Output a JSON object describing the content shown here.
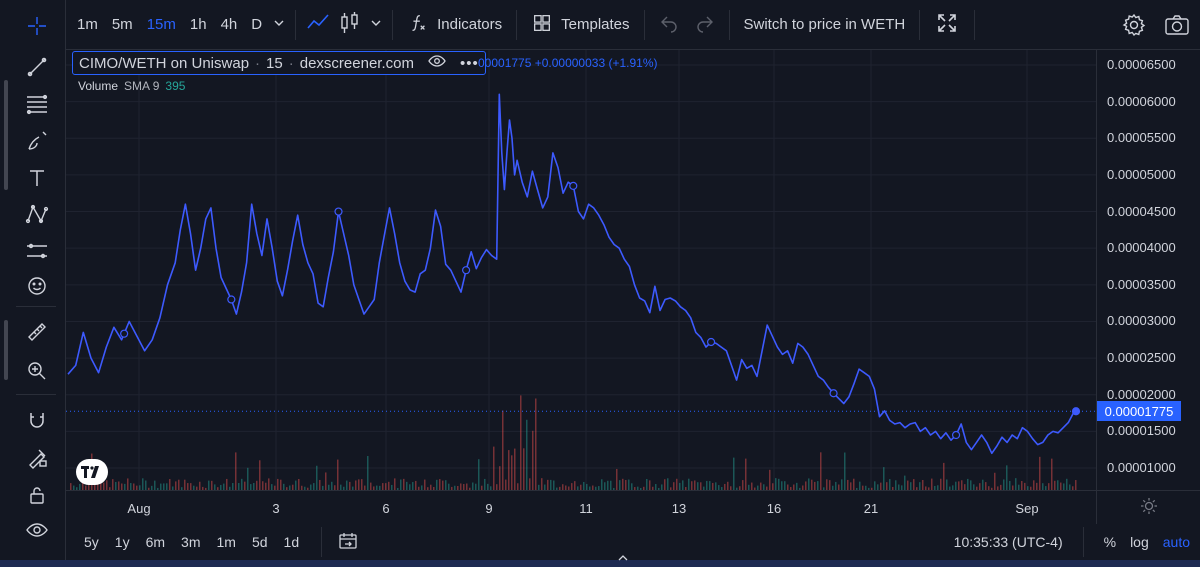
{
  "toolbar": {
    "timeframes": [
      "1m",
      "5m",
      "15m",
      "1h",
      "4h",
      "D"
    ],
    "active_timeframe": "15m",
    "indicators_label": "Indicators",
    "templates_label": "Templates",
    "switch_label": "Switch to price in WETH"
  },
  "legend": {
    "pair": "CIMO/WETH on Uniswap",
    "interval": "15",
    "source": "dexscreener.com",
    "ohlc_text": "00001775 +0.00000033 (+1.91%)",
    "volume_label": "Volume",
    "sma_label": "SMA 9",
    "volume_value": "395"
  },
  "price_axis": {
    "ticks": [
      "0.00006500",
      "0.00006000",
      "0.00005500",
      "0.00005000",
      "0.00004500",
      "0.00004000",
      "0.00003500",
      "0.00003000",
      "0.00002500",
      "0.00002000",
      "0.00001500",
      "0.00001000"
    ],
    "last_price": "0.00001775"
  },
  "time_axis": {
    "ticks": [
      "Aug",
      "3",
      "6",
      "9",
      "11",
      "13",
      "16",
      "21",
      "Sep"
    ]
  },
  "bottom": {
    "ranges": [
      "5y",
      "1y",
      "6m",
      "3m",
      "1m",
      "5d",
      "1d"
    ],
    "clock": "10:35:33 (UTC-4)",
    "percent_label": "%",
    "log_label": "log",
    "auto_label": "auto"
  },
  "colors": {
    "line": "#3d5afe",
    "accent": "#2962ff",
    "bg": "#131722"
  },
  "chart_data": {
    "type": "line",
    "series": [
      {
        "values": [
          [
            0,
            2.28e-05
          ],
          [
            3,
            2.4e-05
          ],
          [
            6,
            2.85e-05
          ],
          [
            9,
            2.5e-05
          ],
          [
            12,
            2.3e-05
          ],
          [
            15,
            2.65e-05
          ],
          [
            18,
            2.92e-05
          ],
          [
            21,
            2.75e-05
          ],
          [
            24,
            3e-05
          ],
          [
            27,
            2.8e-05
          ],
          [
            30,
            2.6e-05
          ],
          [
            33,
            2.75e-05
          ],
          [
            36,
            3.05e-05
          ],
          [
            39,
            3.5e-05
          ],
          [
            42,
            3.8e-05
          ],
          [
            44,
            4.25e-05
          ],
          [
            46,
            4.6e-05
          ],
          [
            48,
            4.2e-05
          ],
          [
            50,
            3.7e-05
          ],
          [
            52,
            4e-05
          ],
          [
            54,
            4.4e-05
          ],
          [
            56,
            4.55e-05
          ],
          [
            58,
            4e-05
          ],
          [
            60,
            3.6e-05
          ],
          [
            62,
            3.45e-05
          ],
          [
            64,
            3.3e-05
          ],
          [
            66,
            3.1e-05
          ],
          [
            68,
            3.4e-05
          ],
          [
            70,
            3.8e-05
          ],
          [
            72,
            4.6e-05
          ],
          [
            74,
            4.2e-05
          ],
          [
            76,
            3.9e-05
          ],
          [
            78,
            4.4e-05
          ],
          [
            80,
            4e-05
          ],
          [
            82,
            3.55e-05
          ],
          [
            84,
            3.35e-05
          ],
          [
            86,
            3.7e-05
          ],
          [
            88,
            4.1e-05
          ],
          [
            90,
            4.45e-05
          ],
          [
            92,
            4.05e-05
          ],
          [
            94,
            3.8e-05
          ],
          [
            96,
            3.65e-05
          ],
          [
            98,
            3.25e-05
          ],
          [
            100,
            3.2e-05
          ],
          [
            102,
            3.6e-05
          ],
          [
            104,
            3.95e-05
          ],
          [
            106,
            4.5e-05
          ],
          [
            108,
            4.2e-05
          ],
          [
            110,
            3.9e-05
          ],
          [
            112,
            3.5e-05
          ],
          [
            114,
            3.3e-05
          ],
          [
            116,
            3.1e-05
          ],
          [
            118,
            3.2e-05
          ],
          [
            120,
            3.3e-05
          ],
          [
            122,
            3.8e-05
          ],
          [
            124,
            4.18e-05
          ],
          [
            126,
            4.55e-05
          ],
          [
            128,
            4.2e-05
          ],
          [
            130,
            3.8e-05
          ],
          [
            132,
            3.55e-05
          ],
          [
            134,
            3.43e-05
          ],
          [
            136,
            3.4e-05
          ],
          [
            138,
            3.65e-05
          ],
          [
            140,
            3.7e-05
          ],
          [
            142,
            4e-05
          ],
          [
            144,
            4.52e-05
          ],
          [
            146,
            4.3e-05
          ],
          [
            148,
            3.78e-05
          ],
          [
            150,
            3.7e-05
          ],
          [
            152,
            3.55e-05
          ],
          [
            154,
            3.4e-05
          ],
          [
            156,
            3.7e-05
          ],
          [
            158,
            3.95e-05
          ],
          [
            160,
            3.72e-05
          ],
          [
            162,
            3.87e-05
          ],
          [
            164,
            3.98e-05
          ],
          [
            166,
            3.9e-05
          ],
          [
            168,
            3.85e-05
          ],
          [
            169,
            6.1e-05
          ],
          [
            170,
            5.3e-05
          ],
          [
            171,
            4.8e-05
          ],
          [
            172,
            5.3e-05
          ],
          [
            173,
            5.75e-05
          ],
          [
            174,
            5.5e-05
          ],
          [
            175,
            5e-05
          ],
          [
            176,
            5.2e-05
          ],
          [
            178,
            4.9e-05
          ],
          [
            180,
            4.7e-05
          ],
          [
            182,
            5.05e-05
          ],
          [
            184,
            4.8e-05
          ],
          [
            186,
            4.55e-05
          ],
          [
            188,
            4.7e-05
          ],
          [
            190,
            5.3e-05
          ],
          [
            192,
            5.1e-05
          ],
          [
            194,
            4.75e-05
          ],
          [
            196,
            4.9e-05
          ],
          [
            198,
            4.85e-05
          ],
          [
            200,
            4.5e-05
          ],
          [
            202,
            4.4e-05
          ],
          [
            204,
            4.6e-05
          ],
          [
            206,
            4.55e-05
          ],
          [
            208,
            4.45e-05
          ],
          [
            210,
            4.32e-05
          ],
          [
            212,
            4.15e-05
          ],
          [
            214,
            4.05e-05
          ],
          [
            216,
            4e-05
          ],
          [
            218,
            3.85e-05
          ],
          [
            220,
            3.75e-05
          ],
          [
            222,
            3.5e-05
          ],
          [
            224,
            3.32e-05
          ],
          [
            226,
            3.28e-05
          ],
          [
            228,
            3.12e-05
          ],
          [
            230,
            3.48e-05
          ],
          [
            232,
            3.15e-05
          ],
          [
            234,
            3.3e-05
          ],
          [
            236,
            3.32e-05
          ],
          [
            238,
            3.28e-05
          ],
          [
            240,
            3.2e-05
          ],
          [
            242,
            3.15e-05
          ],
          [
            244,
            3.05e-05
          ],
          [
            246,
            2.85e-05
          ],
          [
            248,
            2.78e-05
          ],
          [
            250,
            2.65e-05
          ],
          [
            252,
            2.72e-05
          ],
          [
            254,
            2.7e-05
          ],
          [
            256,
            2.65e-05
          ],
          [
            258,
            2.6e-05
          ],
          [
            260,
            2.4e-05
          ],
          [
            262,
            2.2e-05
          ],
          [
            264,
            2.48e-05
          ],
          [
            266,
            2.36e-05
          ],
          [
            268,
            2.4e-05
          ],
          [
            270,
            2.25e-05
          ],
          [
            272,
            2.6e-05
          ],
          [
            274,
            2.95e-05
          ],
          [
            276,
            2.8e-05
          ],
          [
            278,
            2.65e-05
          ],
          [
            280,
            2.55e-05
          ],
          [
            282,
            2.6e-05
          ],
          [
            284,
            2.43e-05
          ],
          [
            286,
            2.7e-05
          ],
          [
            288,
            2.65e-05
          ],
          [
            290,
            2.55e-05
          ],
          [
            292,
            2.4e-05
          ],
          [
            294,
            2.25e-05
          ],
          [
            296,
            2.2e-05
          ],
          [
            298,
            2.1e-05
          ],
          [
            300,
            2.02e-05
          ],
          [
            302,
            1.95e-05
          ],
          [
            304,
            1.88e-05
          ],
          [
            306,
            1.97e-05
          ],
          [
            308,
            2.15e-05
          ],
          [
            310,
            2.35e-05
          ],
          [
            312,
            2.3e-05
          ],
          [
            314,
            2.25e-05
          ],
          [
            316,
            2.08e-05
          ],
          [
            318,
            1.7e-05
          ],
          [
            320,
            1.78e-05
          ],
          [
            322,
            1.65e-05
          ],
          [
            324,
            1.6e-05
          ],
          [
            326,
            1.62e-05
          ],
          [
            328,
            1.55e-05
          ],
          [
            330,
            1.6e-05
          ],
          [
            332,
            1.62e-05
          ],
          [
            334,
            1.5e-05
          ],
          [
            336,
            1.55e-05
          ],
          [
            338,
            1.45e-05
          ],
          [
            340,
            1.5e-05
          ],
          [
            342,
            1.4e-05
          ],
          [
            344,
            1.48e-05
          ],
          [
            346,
            1.38e-05
          ],
          [
            348,
            1.45e-05
          ],
          [
            350,
            1.6e-05
          ],
          [
            352,
            1.35e-05
          ],
          [
            354,
            1.25e-05
          ],
          [
            356,
            1.35e-05
          ],
          [
            358,
            1.45e-05
          ],
          [
            360,
            1.35e-05
          ],
          [
            362,
            1.2e-05
          ],
          [
            364,
            1.3e-05
          ],
          [
            366,
            1.42e-05
          ],
          [
            368,
            1.35e-05
          ],
          [
            370,
            1.45e-05
          ],
          [
            372,
            1.4e-05
          ],
          [
            374,
            1.55e-05
          ],
          [
            376,
            1.5e-05
          ],
          [
            378,
            1.4e-05
          ],
          [
            380,
            1.32e-05
          ],
          [
            382,
            1.35e-05
          ],
          [
            384,
            1.45e-05
          ],
          [
            386,
            1.5e-05
          ],
          [
            388,
            1.48e-05
          ],
          [
            390,
            1.55e-05
          ],
          [
            392,
            1.62e-05
          ],
          [
            394,
            1.75e-05
          ],
          [
            395,
            1.775e-05
          ]
        ]
      }
    ],
    "markers_x": [
      22,
      64,
      106,
      156,
      198,
      252,
      300,
      348,
      395
    ]
  }
}
